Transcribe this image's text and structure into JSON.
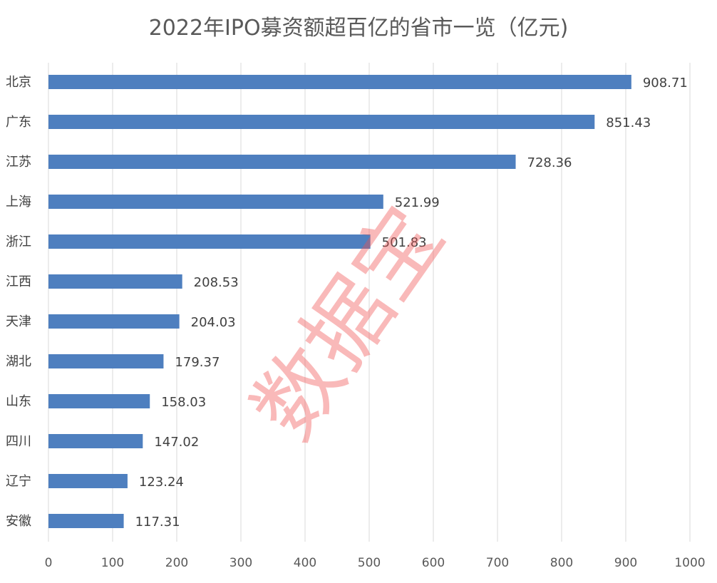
{
  "chart_data": {
    "type": "bar",
    "orientation": "horizontal",
    "title": "2022年IPO募资额超百亿的省市一览（亿元)",
    "categories": [
      "北京",
      "广东",
      "江苏",
      "上海",
      "浙江",
      "江西",
      "天津",
      "湖北",
      "山东",
      "四川",
      "辽宁",
      "安徽"
    ],
    "values": [
      908.71,
      851.43,
      728.36,
      521.99,
      501.83,
      208.53,
      204.03,
      179.37,
      158.03,
      147.02,
      123.24,
      117.31
    ],
    "data_labels": [
      "908.71",
      "851.43",
      "728.36",
      "521.99",
      "501.83",
      "208.53",
      "204.03",
      "179.37",
      "158.03",
      "147.02",
      "123.24",
      "117.31"
    ],
    "xlim": [
      0,
      1000
    ],
    "xticks": [
      0,
      100,
      200,
      300,
      400,
      500,
      600,
      700,
      800,
      900,
      1000
    ],
    "xlabel": "",
    "ylabel": "",
    "grid": "vertical",
    "legend": "none",
    "bar_color": "#4e7fbf",
    "grid_color": "#d9d9d9"
  },
  "watermark": "数据宝"
}
